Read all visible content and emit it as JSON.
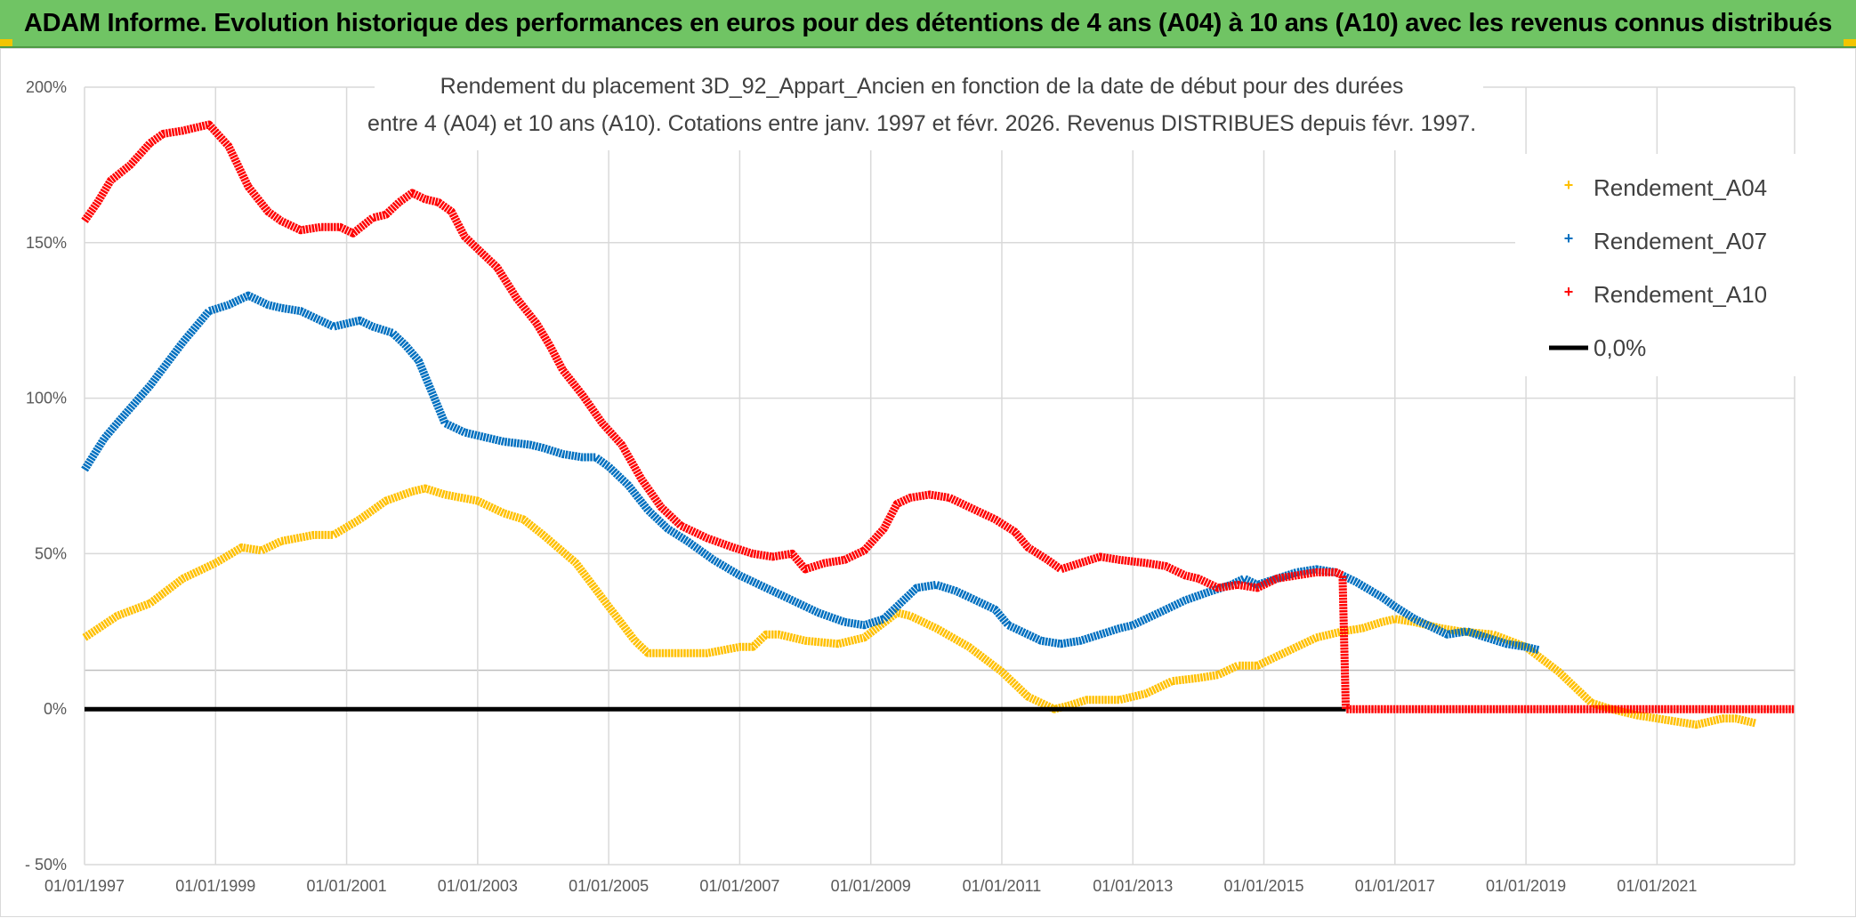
{
  "banner": {
    "title": "ADAM Informe. Evolution historique des performances en euros pour des détentions de 4 ans (A04) à 10 ans (A10) avec les revenus connus distribués"
  },
  "chart_data": {
    "type": "line",
    "title_lines": [
      "Rendement du placement 3D_92_Appart_Ancien en fonction de la date de début pour des durées",
      "entre 4 (A04) et 10 ans (A10). Cotations entre janv. 1997 et févr. 2026. Revenus DISTRIBUES depuis févr. 1997."
    ],
    "xlabel": "",
    "ylabel": "",
    "x_tick_labels": [
      "01/01/1997",
      "01/01/1999",
      "01/01/2001",
      "01/01/2003",
      "01/01/2005",
      "01/01/2007",
      "01/01/2009",
      "01/01/2011",
      "01/01/2013",
      "01/01/2015",
      "01/01/2017",
      "01/01/2019",
      "01/01/2021"
    ],
    "y_tick_labels": [
      "- 50%",
      "0%",
      "50%",
      "100%",
      "150%",
      "200%"
    ],
    "y_ticks": [
      -50,
      0,
      50,
      100,
      150,
      200
    ],
    "xlim": [
      1997.0,
      2023.1
    ],
    "ylim": [
      -50,
      200
    ],
    "grid": true,
    "legend_position": "top-right",
    "legend": [
      "Rendement_A04",
      "Rendement_A07",
      "Rendement_A10",
      "0,0%"
    ],
    "colors": {
      "Rendement_A04": "#ffc000",
      "Rendement_A07": "#0070c0",
      "Rendement_A10": "#ff0000",
      "0,0%": "#000000"
    },
    "series": [
      {
        "name": "Rendement_A04",
        "points": [
          [
            1997.0,
            23
          ],
          [
            1997.5,
            30
          ],
          [
            1998.0,
            34
          ],
          [
            1998.5,
            42
          ],
          [
            1999.0,
            47
          ],
          [
            1999.4,
            52
          ],
          [
            1999.7,
            51
          ],
          [
            2000.0,
            54
          ],
          [
            2000.5,
            56
          ],
          [
            2000.8,
            56
          ],
          [
            2001.2,
            61
          ],
          [
            2001.6,
            67
          ],
          [
            2002.0,
            70
          ],
          [
            2002.2,
            71
          ],
          [
            2002.5,
            69
          ],
          [
            2003.0,
            67
          ],
          [
            2003.4,
            63
          ],
          [
            2003.7,
            61
          ],
          [
            2004.0,
            56
          ],
          [
            2004.5,
            47
          ],
          [
            2005.0,
            33
          ],
          [
            2005.4,
            22
          ],
          [
            2005.6,
            18
          ],
          [
            2006.0,
            18
          ],
          [
            2006.5,
            18
          ],
          [
            2007.0,
            20
          ],
          [
            2007.2,
            20
          ],
          [
            2007.4,
            24
          ],
          [
            2007.6,
            24
          ],
          [
            2008.0,
            22
          ],
          [
            2008.5,
            21
          ],
          [
            2008.9,
            23
          ],
          [
            2009.4,
            31
          ],
          [
            2009.6,
            30
          ],
          [
            2010.0,
            26
          ],
          [
            2010.5,
            20
          ],
          [
            2011.0,
            12
          ],
          [
            2011.4,
            4
          ],
          [
            2011.8,
            0
          ],
          [
            2012.0,
            1
          ],
          [
            2012.3,
            3
          ],
          [
            2012.8,
            3
          ],
          [
            2013.2,
            5
          ],
          [
            2013.6,
            9
          ],
          [
            2014.0,
            10
          ],
          [
            2014.3,
            11
          ],
          [
            2014.6,
            14
          ],
          [
            2014.9,
            14
          ],
          [
            2015.4,
            19
          ],
          [
            2015.8,
            23
          ],
          [
            2016.2,
            25
          ],
          [
            2016.5,
            26
          ],
          [
            2016.8,
            28
          ],
          [
            2017.0,
            29
          ],
          [
            2017.3,
            28
          ],
          [
            2017.7,
            26
          ],
          [
            2018.0,
            25
          ],
          [
            2018.5,
            24
          ],
          [
            2019.0,
            20
          ],
          [
            2019.5,
            12
          ],
          [
            2019.8,
            6
          ],
          [
            2020.0,
            2
          ],
          [
            2020.3,
            0
          ],
          [
            2020.7,
            -2
          ],
          [
            2021.0,
            -3
          ],
          [
            2021.3,
            -4
          ],
          [
            2021.6,
            -5
          ],
          [
            2021.8,
            -4
          ],
          [
            2022.0,
            -3
          ],
          [
            2022.2,
            -3
          ],
          [
            2022.4,
            -4
          ],
          [
            2022.5,
            -4.5
          ]
        ]
      },
      {
        "name": "Rendement_A07",
        "points": [
          [
            1997.0,
            77
          ],
          [
            1997.3,
            87
          ],
          [
            1997.5,
            92
          ],
          [
            1998.0,
            104
          ],
          [
            1998.5,
            118
          ],
          [
            1998.9,
            128
          ],
          [
            1999.2,
            130
          ],
          [
            1999.5,
            133
          ],
          [
            1999.8,
            130
          ],
          [
            2000.0,
            129
          ],
          [
            2000.3,
            128
          ],
          [
            2000.5,
            126
          ],
          [
            2000.8,
            123
          ],
          [
            2001.0,
            124
          ],
          [
            2001.2,
            125
          ],
          [
            2001.4,
            123
          ],
          [
            2001.7,
            121
          ],
          [
            2001.9,
            117
          ],
          [
            2002.1,
            112
          ],
          [
            2002.3,
            102
          ],
          [
            2002.5,
            92
          ],
          [
            2002.8,
            89
          ],
          [
            2003.0,
            88
          ],
          [
            2003.4,
            86
          ],
          [
            2003.8,
            85
          ],
          [
            2004.0,
            84
          ],
          [
            2004.3,
            82
          ],
          [
            2004.6,
            81
          ],
          [
            2004.8,
            81
          ],
          [
            2005.0,
            78
          ],
          [
            2005.3,
            72
          ],
          [
            2005.6,
            64
          ],
          [
            2005.9,
            58
          ],
          [
            2006.2,
            54
          ],
          [
            2006.6,
            48
          ],
          [
            2007.0,
            43
          ],
          [
            2007.4,
            39
          ],
          [
            2007.8,
            35
          ],
          [
            2008.2,
            31
          ],
          [
            2008.6,
            28
          ],
          [
            2008.9,
            27
          ],
          [
            2009.2,
            29
          ],
          [
            2009.5,
            35
          ],
          [
            2009.7,
            39
          ],
          [
            2010.0,
            40
          ],
          [
            2010.3,
            38
          ],
          [
            2010.6,
            35
          ],
          [
            2010.9,
            32
          ],
          [
            2011.1,
            27
          ],
          [
            2011.3,
            25
          ],
          [
            2011.6,
            22
          ],
          [
            2011.9,
            21
          ],
          [
            2012.2,
            22
          ],
          [
            2012.5,
            24
          ],
          [
            2012.8,
            26
          ],
          [
            2013.0,
            27
          ],
          [
            2013.4,
            31
          ],
          [
            2013.8,
            35
          ],
          [
            2014.2,
            38
          ],
          [
            2014.5,
            40
          ],
          [
            2014.7,
            42
          ],
          [
            2014.9,
            40
          ],
          [
            2015.2,
            42
          ],
          [
            2015.5,
            44
          ],
          [
            2015.8,
            45
          ],
          [
            2016.1,
            44
          ],
          [
            2016.4,
            41
          ],
          [
            2016.8,
            36
          ],
          [
            2017.0,
            33
          ],
          [
            2017.3,
            29
          ],
          [
            2017.6,
            26
          ],
          [
            2017.8,
            24
          ],
          [
            2018.1,
            25
          ],
          [
            2018.4,
            23
          ],
          [
            2018.7,
            21
          ],
          [
            2019.0,
            20
          ],
          [
            2019.2,
            19
          ]
        ]
      },
      {
        "name": "Rendement_A10",
        "points": [
          [
            1997.0,
            157
          ],
          [
            1997.2,
            163
          ],
          [
            1997.4,
            170
          ],
          [
            1997.7,
            175
          ],
          [
            1998.0,
            182
          ],
          [
            1998.2,
            185
          ],
          [
            1998.5,
            186
          ],
          [
            1998.7,
            187
          ],
          [
            1998.9,
            188
          ],
          [
            1999.2,
            181
          ],
          [
            1999.5,
            168
          ],
          [
            1999.8,
            160
          ],
          [
            2000.0,
            157
          ],
          [
            2000.3,
            154
          ],
          [
            2000.6,
            155
          ],
          [
            2000.9,
            155
          ],
          [
            2001.1,
            153
          ],
          [
            2001.4,
            158
          ],
          [
            2001.6,
            159
          ],
          [
            2001.8,
            163
          ],
          [
            2002.0,
            166
          ],
          [
            2002.2,
            164
          ],
          [
            2002.4,
            163
          ],
          [
            2002.6,
            160
          ],
          [
            2002.8,
            152
          ],
          [
            2003.0,
            148
          ],
          [
            2003.3,
            142
          ],
          [
            2003.6,
            132
          ],
          [
            2003.9,
            124
          ],
          [
            2004.1,
            117
          ],
          [
            2004.3,
            109
          ],
          [
            2004.6,
            101
          ],
          [
            2004.9,
            92
          ],
          [
            2005.2,
            85
          ],
          [
            2005.5,
            74
          ],
          [
            2005.8,
            65
          ],
          [
            2006.1,
            59
          ],
          [
            2006.5,
            55
          ],
          [
            2006.9,
            52
          ],
          [
            2007.2,
            50
          ],
          [
            2007.5,
            49
          ],
          [
            2007.8,
            50
          ],
          [
            2008.0,
            45
          ],
          [
            2008.3,
            47
          ],
          [
            2008.6,
            48
          ],
          [
            2008.9,
            51
          ],
          [
            2009.2,
            58
          ],
          [
            2009.4,
            66
          ],
          [
            2009.6,
            68
          ],
          [
            2009.9,
            69
          ],
          [
            2010.2,
            68
          ],
          [
            2010.5,
            65
          ],
          [
            2010.9,
            61
          ],
          [
            2011.2,
            57
          ],
          [
            2011.4,
            52
          ],
          [
            2011.7,
            48
          ],
          [
            2011.9,
            45
          ],
          [
            2012.2,
            47
          ],
          [
            2012.5,
            49
          ],
          [
            2012.8,
            48
          ],
          [
            2013.2,
            47
          ],
          [
            2013.5,
            46
          ],
          [
            2013.8,
            43
          ],
          [
            2014.0,
            42
          ],
          [
            2014.3,
            39
          ],
          [
            2014.6,
            40
          ],
          [
            2014.9,
            39
          ],
          [
            2015.2,
            42
          ],
          [
            2015.5,
            43
          ],
          [
            2015.8,
            44
          ],
          [
            2016.1,
            44
          ],
          [
            2016.2,
            43
          ],
          [
            2016.25,
            0
          ],
          [
            2017.0,
            0
          ],
          [
            2018.0,
            0
          ],
          [
            2019.0,
            0
          ],
          [
            2020.0,
            0
          ],
          [
            2021.0,
            0
          ],
          [
            2022.0,
            0
          ],
          [
            2023.1,
            0
          ]
        ]
      },
      {
        "name": "0,0%",
        "points": [
          [
            1997.0,
            0
          ],
          [
            2016.25,
            0
          ]
        ]
      }
    ]
  }
}
